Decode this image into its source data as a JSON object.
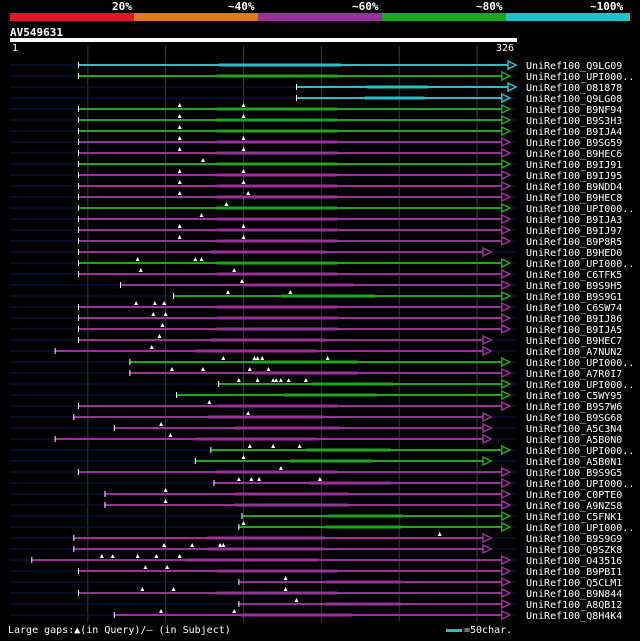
{
  "legend": {
    "labels": [
      "20%",
      "~40%",
      "~60%",
      "~80%",
      "~100%"
    ],
    "colors": [
      "#e0142a",
      "#e07a1f",
      "#9b2f9b",
      "#1fa61f",
      "#25c1cb"
    ]
  },
  "query": {
    "id": "AV549631",
    "start_label": "1",
    "end_label": "326",
    "length": 326
  },
  "colors": {
    "green": "#1fa61f",
    "purple": "#9b2f9b",
    "cyan": "#25c1cb",
    "navy": "#0c1a52",
    "grid": "#3a3a3a"
  },
  "hits": [
    {
      "name": "UniRef100_Q9LG09",
      "start": 45,
      "end": 326,
      "color": "cyan",
      "gaps": []
    },
    {
      "name": "UniRef100_UPI000..",
      "start": 45,
      "end": 322,
      "color": "green",
      "gaps": []
    },
    {
      "name": "UniRef100_O81878",
      "start": 185,
      "end": 326,
      "color": "cyan",
      "gaps": []
    },
    {
      "name": "UniRef100_Q9LG08",
      "start": 185,
      "end": 322,
      "color": "cyan",
      "gaps": []
    },
    {
      "name": "UniRef100_B9NF94",
      "start": 45,
      "end": 322,
      "color": "green",
      "gaps": [
        110,
        151
      ]
    },
    {
      "name": "UniRef100_B9S3H3",
      "start": 45,
      "end": 322,
      "color": "green",
      "gaps": [
        110,
        151
      ]
    },
    {
      "name": "UniRef100_B9IJA4",
      "start": 45,
      "end": 322,
      "color": "green",
      "gaps": [
        110
      ]
    },
    {
      "name": "UniRef100_B9SG59",
      "start": 45,
      "end": 322,
      "color": "purple",
      "gaps": [
        110,
        151
      ]
    },
    {
      "name": "UniRef100_B9HEC6",
      "start": 45,
      "end": 322,
      "color": "purple",
      "gaps": [
        110,
        151
      ]
    },
    {
      "name": "UniRef100_B9IJ91",
      "start": 45,
      "end": 322,
      "color": "green",
      "gaps": [
        125
      ]
    },
    {
      "name": "UniRef100_B9IJ95",
      "start": 45,
      "end": 322,
      "color": "purple",
      "gaps": [
        110,
        151
      ]
    },
    {
      "name": "UniRef100_B9NDD4",
      "start": 45,
      "end": 322,
      "color": "purple",
      "gaps": [
        110,
        151
      ]
    },
    {
      "name": "UniRef100_B9HEC8",
      "start": 45,
      "end": 322,
      "color": "purple",
      "gaps": [
        110,
        154
      ]
    },
    {
      "name": "UniRef100_UPI000..",
      "start": 45,
      "end": 322,
      "color": "green",
      "gaps": [
        140
      ]
    },
    {
      "name": "UniRef100_B9IJA3",
      "start": 45,
      "end": 322,
      "color": "purple",
      "gaps": [
        124
      ]
    },
    {
      "name": "UniRef100_B9IJ97",
      "start": 45,
      "end": 322,
      "color": "purple",
      "gaps": [
        110,
        151
      ]
    },
    {
      "name": "UniRef100_B9P8R5",
      "start": 45,
      "end": 322,
      "color": "purple",
      "gaps": [
        110,
        151
      ]
    },
    {
      "name": "UniRef100_B9HED0",
      "start": 45,
      "end": 310,
      "color": "purple",
      "gaps": []
    },
    {
      "name": "UniRef100_UPI000..",
      "start": 45,
      "end": 322,
      "color": "green",
      "gaps": [
        83,
        120,
        124
      ]
    },
    {
      "name": "UniRef100_C6TFK5",
      "start": 45,
      "end": 322,
      "color": "purple",
      "gaps": [
        85,
        145
      ]
    },
    {
      "name": "UniRef100_B9S9H5",
      "start": 72,
      "end": 322,
      "color": "purple",
      "gaps": [
        150
      ]
    },
    {
      "name": "UniRef100_B9S9G1",
      "start": 106,
      "end": 322,
      "color": "green",
      "gaps": [
        141,
        181
      ]
    },
    {
      "name": "UniRef100_C6SW74",
      "start": 45,
      "end": 322,
      "color": "purple",
      "gaps": [
        82,
        94,
        100
      ]
    },
    {
      "name": "UniRef100_B9IJ86",
      "start": 45,
      "end": 322,
      "color": "purple",
      "gaps": [
        93,
        101
      ]
    },
    {
      "name": "UniRef100_B9IJA5",
      "start": 45,
      "end": 322,
      "color": "purple",
      "gaps": [
        99
      ]
    },
    {
      "name": "UniRef100_B9HEC7",
      "start": 45,
      "end": 310,
      "color": "purple",
      "gaps": [
        97
      ]
    },
    {
      "name": "UniRef100_A7NUN2",
      "start": 30,
      "end": 310,
      "color": "purple",
      "gaps": [
        92
      ]
    },
    {
      "name": "UniRef100_UPI000..",
      "start": 78,
      "end": 322,
      "color": "green",
      "gaps": [
        138,
        158,
        160,
        163,
        205
      ]
    },
    {
      "name": "UniRef100_A7R0I7",
      "start": 78,
      "end": 322,
      "color": "purple",
      "gaps": [
        105,
        125,
        155,
        167
      ]
    },
    {
      "name": "UniRef100_UPI000..",
      "start": 135,
      "end": 322,
      "color": "green",
      "gaps": [
        148,
        160,
        170,
        172,
        175,
        180,
        191
      ]
    },
    {
      "name": "UniRef100_C5WY95",
      "start": 108,
      "end": 322,
      "color": "green",
      "gaps": []
    },
    {
      "name": "UniRef100_B9S7W6",
      "start": 45,
      "end": 322,
      "color": "purple",
      "gaps": [
        129
      ]
    },
    {
      "name": "UniRef100_B9SG68",
      "start": 42,
      "end": 310,
      "color": "purple",
      "gaps": [
        154
      ]
    },
    {
      "name": "UniRef100_A5C3N4",
      "start": 68,
      "end": 310,
      "color": "purple",
      "gaps": [
        98
      ]
    },
    {
      "name": "UniRef100_A5B0N0",
      "start": 30,
      "end": 310,
      "color": "purple",
      "gaps": [
        104
      ]
    },
    {
      "name": "UniRef100_UPI000..",
      "start": 130,
      "end": 322,
      "color": "green",
      "gaps": [
        155,
        170,
        187
      ]
    },
    {
      "name": "UniRef100_A5B0N1",
      "start": 120,
      "end": 310,
      "color": "green",
      "gaps": [
        151
      ]
    },
    {
      "name": "UniRef100_B9S9G5",
      "start": 45,
      "end": 322,
      "color": "purple",
      "gaps": [
        175
      ]
    },
    {
      "name": "UniRef100_UPI000..",
      "start": 132,
      "end": 322,
      "color": "purple",
      "gaps": [
        148,
        156,
        161,
        200
      ]
    },
    {
      "name": "UniRef100_C0PTE0",
      "start": 62,
      "end": 322,
      "color": "purple",
      "gaps": [
        101
      ]
    },
    {
      "name": "UniRef100_A9NZS8",
      "start": 62,
      "end": 322,
      "color": "purple",
      "gaps": [
        101
      ]
    },
    {
      "name": "UniRef100_C5FNK1",
      "start": 150,
      "end": 322,
      "color": "green",
      "gaps": []
    },
    {
      "name": "UniRef100_UPI000..",
      "start": 148,
      "end": 322,
      "color": "green",
      "gaps": [
        151
      ]
    },
    {
      "name": "UniRef100_B9S9G9",
      "start": 42,
      "end": 310,
      "color": "purple",
      "gaps": [
        277
      ]
    },
    {
      "name": "UniRef100_Q9SZK8",
      "start": 42,
      "end": 310,
      "color": "purple",
      "gaps": [
        100,
        118,
        136,
        138
      ]
    },
    {
      "name": "UniRef100_O43516",
      "start": 15,
      "end": 322,
      "color": "purple",
      "gaps": [
        60,
        67,
        83,
        95,
        110
      ]
    },
    {
      "name": "UniRef100_B9PBI1",
      "start": 45,
      "end": 322,
      "color": "purple",
      "gaps": [
        88,
        102
      ]
    },
    {
      "name": "UniRef100_Q5CLM1",
      "start": 148,
      "end": 322,
      "color": "purple",
      "gaps": [
        178
      ]
    },
    {
      "name": "UniRef100_B9N844",
      "start": 45,
      "end": 322,
      "color": "purple",
      "gaps": [
        86,
        106,
        178
      ]
    },
    {
      "name": "UniRef100_A8QB12",
      "start": 148,
      "end": 322,
      "color": "purple",
      "gaps": [
        185
      ]
    },
    {
      "name": "UniRef100_Q8H4K4",
      "start": 68,
      "end": 322,
      "color": "purple",
      "gaps": [
        98,
        145
      ]
    }
  ],
  "footer": {
    "text": "Large gaps:▲(in Query)/– (in Subject)"
  },
  "scale": {
    "text": "=50char."
  }
}
